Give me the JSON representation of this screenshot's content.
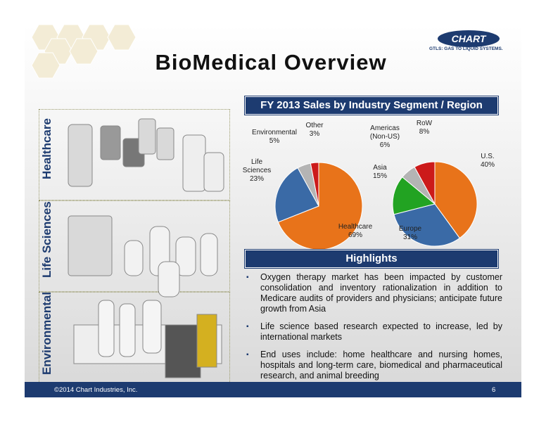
{
  "header": {
    "title": "BioMedical Overview",
    "logo": "CHART",
    "tagline": "GTLS: GAS TO LIQUID SYSTEMS."
  },
  "segments": [
    "Healthcare",
    "Life Sciences",
    "Environmental"
  ],
  "chart_data": [
    {
      "type": "pie",
      "title": "FY 2013 Sales by Industry Segment / Region",
      "categories": [
        "Healthcare",
        "Life Sciences",
        "Environmental",
        "Other"
      ],
      "values": [
        69,
        23,
        5,
        3
      ],
      "value_labels": [
        "69%",
        "23%",
        "5%",
        "3%"
      ],
      "colors": [
        "#e8731a",
        "#3a6aa6",
        "#b4b4b4",
        "#cc1a1a"
      ]
    },
    {
      "type": "pie",
      "categories": [
        "U.S.",
        "Europe",
        "Asia",
        "Americas (Non-US)",
        "RoW"
      ],
      "values": [
        40,
        31,
        15,
        6,
        8
      ],
      "value_labels": [
        "40%",
        "31%",
        "15%",
        "6%",
        "8%"
      ],
      "colors": [
        "#e8731a",
        "#3a6aa6",
        "#22a322",
        "#b4b4b4",
        "#cc1a1a"
      ]
    }
  ],
  "highlights": {
    "title": "Highlights",
    "items": [
      "Oxygen therapy market has been impacted by customer consolidation and inventory rationalization in addition to Medicare audits of providers and physicians; anticipate future growth from Asia",
      "Life science based research expected to increase, led by international markets",
      "End uses include: home healthcare and nursing homes, hospitals and long-term care, biomedical and pharmaceutical research, and animal breeding"
    ]
  },
  "footer": {
    "copyright": "©2014 Chart Industries, Inc.",
    "page": 6
  }
}
